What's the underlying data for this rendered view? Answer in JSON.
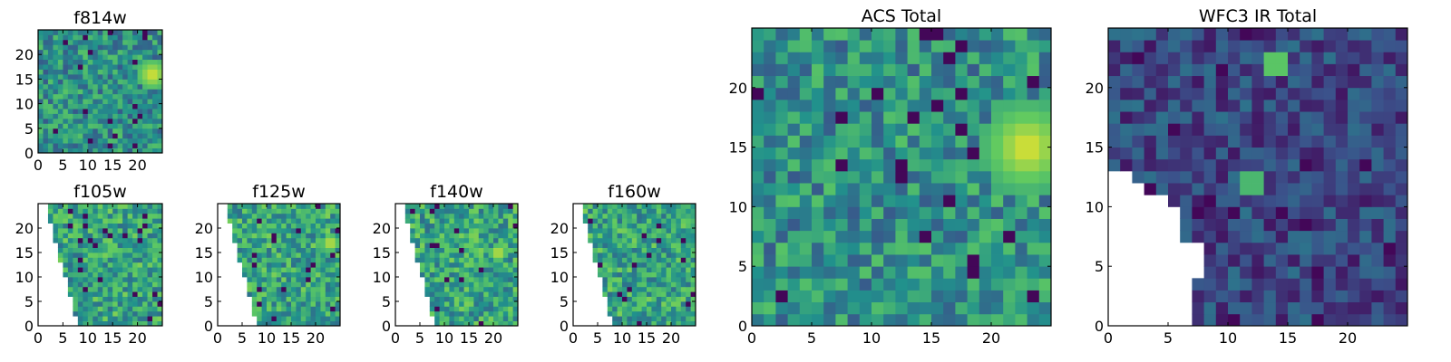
{
  "figure": {
    "description_free": true
  },
  "colormap": [
    "#440154",
    "#3b528b",
    "#21918c",
    "#5ec962",
    "#fde725"
  ],
  "chart_data": [
    {
      "type": "heatmap",
      "title": "f814w",
      "grid": [
        25,
        25
      ],
      "xlim": [
        0,
        25
      ],
      "ylim": [
        0,
        25
      ],
      "xticks": [
        0,
        5,
        10,
        15,
        20
      ],
      "yticks": [
        0,
        5,
        10,
        15,
        20
      ],
      "xlabels": [
        "0",
        "5",
        "10",
        "15",
        "20"
      ],
      "ylabels": [
        "0",
        "5",
        "10",
        "15",
        "20"
      ],
      "mask": "none",
      "hotspots": [
        {
          "x": 23,
          "y": 16,
          "r": 3.5
        }
      ],
      "seed": 11
    },
    {
      "type": "heatmap",
      "title": "f105w",
      "grid": [
        25,
        25
      ],
      "xlim": [
        0,
        25
      ],
      "ylim": [
        0,
        25
      ],
      "xticks": [
        0,
        5,
        10,
        15,
        20
      ],
      "yticks": [
        0,
        5,
        10,
        15,
        20
      ],
      "xlabels": [
        "0",
        "5",
        "10",
        "15",
        "20"
      ],
      "ylabels": [
        "0",
        "5",
        "10",
        "15",
        "20"
      ],
      "mask": "diagonal",
      "hotspots": [
        {
          "x": 5,
          "y": 22,
          "r": 1
        }
      ],
      "seed": 23
    },
    {
      "type": "heatmap",
      "title": "f125w",
      "grid": [
        25,
        25
      ],
      "xlim": [
        0,
        25
      ],
      "ylim": [
        0,
        25
      ],
      "xticks": [
        0,
        5,
        10,
        15,
        20
      ],
      "yticks": [
        0,
        5,
        10,
        15,
        20
      ],
      "xlabels": [
        "0",
        "5",
        "10",
        "15",
        "20"
      ],
      "ylabels": [
        "0",
        "5",
        "10",
        "15",
        "20"
      ],
      "mask": "diagonal",
      "hotspots": [
        {
          "x": 23,
          "y": 17,
          "r": 2
        }
      ],
      "seed": 37
    },
    {
      "type": "heatmap",
      "title": "f140w",
      "grid": [
        25,
        25
      ],
      "xlim": [
        0,
        25
      ],
      "ylim": [
        0,
        25
      ],
      "xticks": [
        0,
        5,
        10,
        15,
        20
      ],
      "yticks": [
        0,
        5,
        10,
        15,
        20
      ],
      "xlabels": [
        "0",
        "5",
        "10",
        "15",
        "20"
      ],
      "ylabels": [
        "0",
        "5",
        "10",
        "15",
        "20"
      ],
      "mask": "diagonal",
      "hotspots": [
        {
          "x": 21,
          "y": 15,
          "r": 2
        }
      ],
      "seed": 41
    },
    {
      "type": "heatmap",
      "title": "f160w",
      "grid": [
        25,
        25
      ],
      "xlim": [
        0,
        25
      ],
      "ylim": [
        0,
        25
      ],
      "xticks": [
        0,
        5,
        10,
        15,
        20
      ],
      "yticks": [
        0,
        5,
        10,
        15,
        20
      ],
      "xlabels": [
        "0",
        "5",
        "10",
        "15",
        "20"
      ],
      "ylabels": [
        "0",
        "5",
        "10",
        "15",
        "20"
      ],
      "mask": "diagonal",
      "hotspots": [
        {
          "x": 14,
          "y": 5,
          "r": 1
        }
      ],
      "seed": 53
    },
    {
      "type": "heatmap",
      "title": "ACS Total",
      "grid": [
        25,
        25
      ],
      "xlim": [
        0,
        25
      ],
      "ylim": [
        0,
        25
      ],
      "xticks": [
        0,
        5,
        10,
        15,
        20
      ],
      "yticks": [
        0,
        5,
        10,
        15,
        20
      ],
      "xlabels": [
        "0",
        "5",
        "10",
        "15",
        "20"
      ],
      "ylabels": [
        "0",
        "5",
        "10",
        "15",
        "20"
      ],
      "mask": "none",
      "hotspots": [
        {
          "x": 23,
          "y": 15,
          "r": 4
        }
      ],
      "seed": 61
    },
    {
      "type": "heatmap",
      "title": "WFC3 IR Total",
      "grid": [
        25,
        25
      ],
      "xlim": [
        0,
        25
      ],
      "ylim": [
        0,
        25
      ],
      "xticks": [
        0,
        5,
        10,
        15,
        20
      ],
      "yticks": [
        0,
        5,
        10,
        15,
        20
      ],
      "xlabels": [
        "0",
        "5",
        "10",
        "15",
        "20"
      ],
      "ylabels": [
        "0",
        "5",
        "10",
        "15",
        "20"
      ],
      "mask": "wfc3",
      "hotspots": [
        {
          "x": 14,
          "y": 22,
          "r": 1
        },
        {
          "x": 12,
          "y": 12,
          "r": 0.8
        }
      ],
      "seed": 79
    }
  ]
}
